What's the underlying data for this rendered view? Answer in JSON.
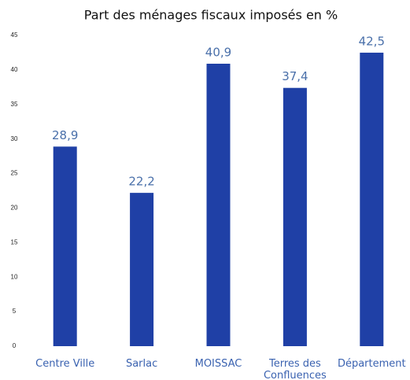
{
  "chart_data": {
    "type": "bar",
    "title": "Part des ménages fiscaux imposés en %",
    "categories": [
      "Centre Ville",
      "Sarlac",
      "MOISSAC",
      "Terres des Confluences",
      "Département"
    ],
    "values": [
      28.9,
      22.2,
      40.9,
      37.4,
      42.5
    ],
    "value_labels": [
      "28,9",
      "22,2",
      "40,9",
      "37,4",
      "42,5"
    ],
    "color": "#1f40a6",
    "ylim": [
      0,
      45
    ],
    "yticks": [
      0,
      5,
      10,
      15,
      20,
      25,
      30,
      35,
      40,
      45
    ],
    "grid": false
  }
}
